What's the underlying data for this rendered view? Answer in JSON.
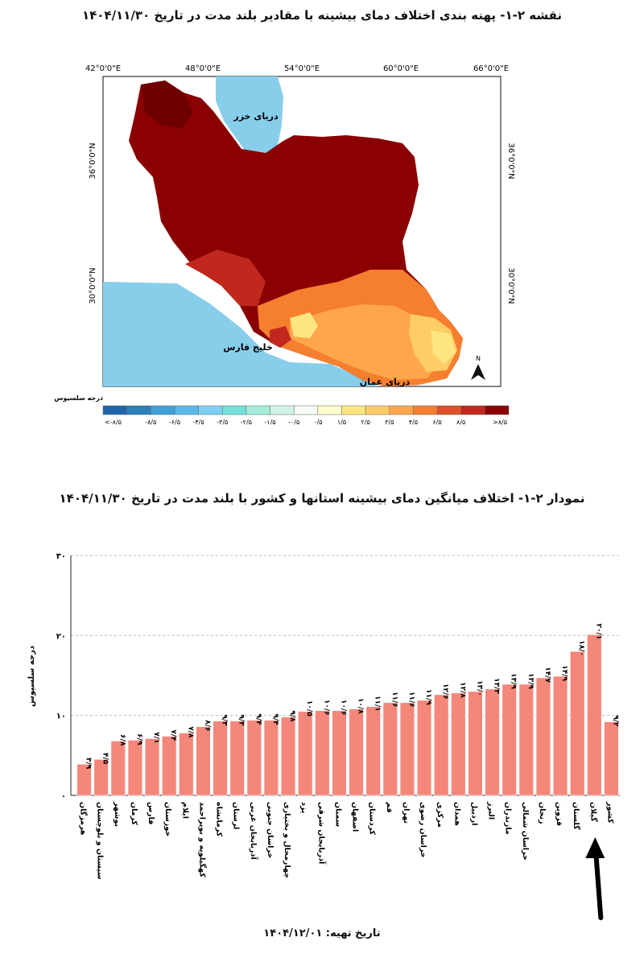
{
  "map": {
    "title": "نقشه ۲-۱- پهنه بندی اختلاف دمای بیشینه با مقادیر بلند مدت در تاریخ ۱۴۰۴/۱۱/۳۰",
    "lon_labels": [
      "42°0'0\"E",
      "48°0'0\"E",
      "54°0'0\"E",
      "60°0'0\"E",
      "66°0'0\"E"
    ],
    "lat_labels": [
      "36°0'0\"N",
      "30°0'0\"N"
    ],
    "places": {
      "caspian": "دریای خزر",
      "persian_gulf": "خلیج فارس",
      "oman_sea": "دریای عمان"
    },
    "north_label": "N",
    "legend": {
      "title": "درجه سلسیوس",
      "colors": [
        "#2166ac",
        "#2c7fb8",
        "#41a0d8",
        "#5ab8e8",
        "#7fd0f0",
        "#74e0d8",
        "#a6ecd8",
        "#d2f4e8",
        "#f5fbf5",
        "#ffffcc",
        "#ffe680",
        "#ffcc66",
        "#ffa64d",
        "#f57f2e",
        "#e0502a",
        "#c0281e",
        "#8b0000"
      ],
      "labels": [
        "<-۸/۵",
        "-۸/۵",
        "-۶/۵",
        "-۴/۵",
        "-۳/۵",
        "-۲/۵",
        "-۱/۵",
        "-۰/۵",
        "۰/۵",
        "۱/۵",
        "۲/۵",
        "۳/۵",
        "۴/۵",
        "۶/۵",
        "۸/۵",
        ">۸/۵"
      ]
    }
  },
  "chart_data": {
    "type": "bar",
    "title": "نمودار ۲-۱- اختلاف میانگین دمای بیشینه استانها و کشور با بلند مدت در تاریخ ۱۴۰۴/۱۱/۳۰",
    "ylabel": "درجه سلسیوس",
    "xlabel": "",
    "ylim": [
      0,
      30
    ],
    "yticks": [
      0,
      10,
      20,
      30
    ],
    "ytick_labels": [
      "۰",
      "۱۰",
      "۲۰",
      "۳۰"
    ],
    "bar_color": "#f4877a",
    "categories": [
      "هرمزگان",
      "سیستان و بلوچستان",
      "بوشهر",
      "کرمان",
      "فارس",
      "خوزستان",
      "ایلام",
      "کهگیلویه و بویراحمد",
      "کرمانشاه",
      "لرستان",
      "آذربایجان غربی",
      "خراسان جنوبی",
      "چهارمحال و بختیاری",
      "یزد",
      "آذربایجان شرقی",
      "سمنان",
      "اصفهان",
      "کردستان",
      "قم",
      "تهران",
      "خراسان رضوی",
      "مرکزی",
      "همدان",
      "اردبیل",
      "البرز",
      "مازندران",
      "خراسان شمالی",
      "زنجان",
      "قزوین",
      "گلستان",
      "گیلان",
      "کشور"
    ],
    "values": [
      3.9,
      4.5,
      6.8,
      6.9,
      7.1,
      7.4,
      7.8,
      8.6,
      9.3,
      9.3,
      9.4,
      9.4,
      9.8,
      10.5,
      10.6,
      10.6,
      10.8,
      11.1,
      11.6,
      11.6,
      11.9,
      12.6,
      12.8,
      13.0,
      13.3,
      13.9,
      13.9,
      14.7,
      14.9,
      18.0,
      20.1,
      9.2
    ],
    "value_labels": [
      "۳/۹",
      "۴/۵",
      "۶/۸",
      "۶/۹",
      "۷/۱",
      "۷/۴",
      "۷/۸",
      "۸/۶",
      "۹/۳",
      "۹/۳",
      "۹/۴",
      "۹/۴",
      "۹/۸",
      "۱۰/۵",
      "۱۰/۶",
      "۱۰/۶",
      "۱۰/۸",
      "۱۱/۱",
      "۱۱/۶",
      "۱۱/۶",
      "۱۱/۹",
      "۱۲/۶",
      "۱۲/۸",
      "۱۳/۰",
      "۱۳/۳",
      "۱۳/۹",
      "۱۳/۹",
      "۱۴/۷",
      "۱۴/۹",
      "۱۸/۰",
      "۲۰/۱",
      "۹/۲"
    ],
    "highlight_category": "گیلان",
    "grid": true,
    "legend": "none"
  },
  "footer": {
    "prep_date": "تاریخ تهیه: ۱۴۰۴/۱۲/۰۱"
  }
}
